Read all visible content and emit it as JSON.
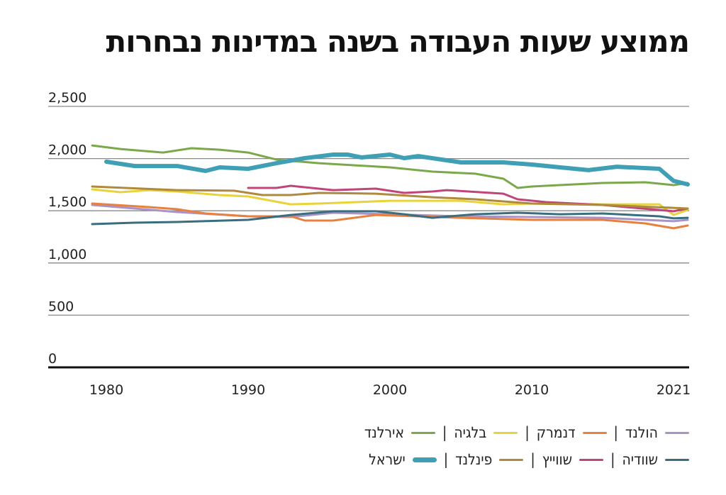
{
  "chart_data": {
    "type": "line",
    "title": "ממוצע שעות העבודה בשנה במדינות נבחרות",
    "xlabel": "",
    "ylabel": "",
    "xlim": [
      1979,
      2021
    ],
    "ylim": [
      0,
      2500
    ],
    "x_ticks": [
      "1980",
      "1990",
      "2000",
      "2010",
      "2021"
    ],
    "y_ticks": [
      "0",
      "500",
      "1,000",
      "1,500",
      "2,000",
      "2,500"
    ],
    "grid": true,
    "legend_placement": "bottom-right",
    "series": [
      {
        "name": "הולנד",
        "color": "#a994c8",
        "points": [
          [
            1979,
            1556
          ],
          [
            1985,
            1488
          ],
          [
            1990,
            1447
          ],
          [
            1993,
            1440
          ],
          [
            1996,
            1481
          ],
          [
            2000,
            1467
          ],
          [
            2005,
            1447
          ],
          [
            2010,
            1440
          ],
          [
            2015,
            1433
          ],
          [
            2020,
            1400
          ],
          [
            2021,
            1413
          ]
        ]
      },
      {
        "name": "דנמרק",
        "color": "#e8803f",
        "points": [
          [
            1979,
            1569
          ],
          [
            1983,
            1535
          ],
          [
            1985,
            1515
          ],
          [
            1987,
            1474
          ],
          [
            1990,
            1447
          ],
          [
            1993,
            1447
          ],
          [
            1994,
            1406
          ],
          [
            1996,
            1406
          ],
          [
            1999,
            1460
          ],
          [
            2002,
            1447
          ],
          [
            2005,
            1433
          ],
          [
            2010,
            1413
          ],
          [
            2015,
            1413
          ],
          [
            2018,
            1379
          ],
          [
            2020,
            1332
          ],
          [
            2021,
            1359
          ]
        ]
      },
      {
        "name": "בלגיה",
        "color": "#e8d33a",
        "points": [
          [
            1979,
            1705
          ],
          [
            1981,
            1678
          ],
          [
            1983,
            1698
          ],
          [
            1985,
            1685
          ],
          [
            1988,
            1651
          ],
          [
            1990,
            1637
          ],
          [
            1993,
            1562
          ],
          [
            1995,
            1569
          ],
          [
            2000,
            1596
          ],
          [
            2005,
            1596
          ],
          [
            2008,
            1562
          ],
          [
            2010,
            1569
          ],
          [
            2015,
            1562
          ],
          [
            2019,
            1562
          ],
          [
            2020,
            1460
          ],
          [
            2021,
            1508
          ]
        ]
      },
      {
        "name": "אירלנד",
        "color": "#7ba84a",
        "points": [
          [
            1979,
            2126
          ],
          [
            1981,
            2092
          ],
          [
            1984,
            2058
          ],
          [
            1986,
            2099
          ],
          [
            1988,
            2085
          ],
          [
            1990,
            2058
          ],
          [
            1992,
            1990
          ],
          [
            1995,
            1956
          ],
          [
            2000,
            1916
          ],
          [
            2003,
            1875
          ],
          [
            2006,
            1855
          ],
          [
            2008,
            1807
          ],
          [
            2009,
            1719
          ],
          [
            2010,
            1732
          ],
          [
            2015,
            1766
          ],
          [
            2018,
            1773
          ],
          [
            2020,
            1746
          ],
          [
            2021,
            1766
          ]
        ]
      },
      {
        "name": "שוודיה",
        "color": "#3a6e7e",
        "points": [
          [
            1979,
            1372
          ],
          [
            1982,
            1386
          ],
          [
            1985,
            1393
          ],
          [
            1990,
            1413
          ],
          [
            1993,
            1460
          ],
          [
            1996,
            1495
          ],
          [
            1999,
            1495
          ],
          [
            2001,
            1467
          ],
          [
            2003,
            1433
          ],
          [
            2006,
            1467
          ],
          [
            2009,
            1481
          ],
          [
            2012,
            1467
          ],
          [
            2015,
            1474
          ],
          [
            2019,
            1447
          ],
          [
            2020,
            1427
          ],
          [
            2021,
            1433
          ]
        ]
      },
      {
        "name": "שווייץ",
        "color": "#c0457a",
        "points": [
          [
            1990,
            1719
          ],
          [
            1992,
            1719
          ],
          [
            1993,
            1739
          ],
          [
            1996,
            1698
          ],
          [
            1999,
            1712
          ],
          [
            2001,
            1671
          ],
          [
            2003,
            1685
          ],
          [
            2004,
            1698
          ],
          [
            2008,
            1664
          ],
          [
            2009,
            1610
          ],
          [
            2011,
            1583
          ],
          [
            2015,
            1556
          ],
          [
            2020,
            1495
          ],
          [
            2021,
            1522
          ]
        ]
      },
      {
        "name": "פינלנד",
        "color": "#b08a3c",
        "points": [
          [
            1979,
            1732
          ],
          [
            1985,
            1698
          ],
          [
            1989,
            1692
          ],
          [
            1991,
            1651
          ],
          [
            1993,
            1651
          ],
          [
            1995,
            1671
          ],
          [
            1999,
            1664
          ],
          [
            2003,
            1630
          ],
          [
            2006,
            1610
          ],
          [
            2010,
            1569
          ],
          [
            2015,
            1556
          ],
          [
            2020,
            1528
          ],
          [
            2021,
            1522
          ]
        ]
      },
      {
        "name": "ישראל",
        "color": "#3fa0b5",
        "thick": true,
        "points": [
          [
            1980,
            1970
          ],
          [
            1982,
            1929
          ],
          [
            1985,
            1929
          ],
          [
            1987,
            1882
          ],
          [
            1988,
            1916
          ],
          [
            1990,
            1902
          ],
          [
            1992,
            1956
          ],
          [
            1994,
            2004
          ],
          [
            1996,
            2038
          ],
          [
            1997,
            2038
          ],
          [
            1998,
            2011
          ],
          [
            2000,
            2038
          ],
          [
            2001,
            2004
          ],
          [
            2002,
            2024
          ],
          [
            2005,
            1963
          ],
          [
            2008,
            1963
          ],
          [
            2010,
            1943
          ],
          [
            2012,
            1916
          ],
          [
            2014,
            1889
          ],
          [
            2016,
            1922
          ],
          [
            2019,
            1902
          ],
          [
            2020,
            1787
          ],
          [
            2021,
            1753
          ]
        ]
      }
    ]
  }
}
